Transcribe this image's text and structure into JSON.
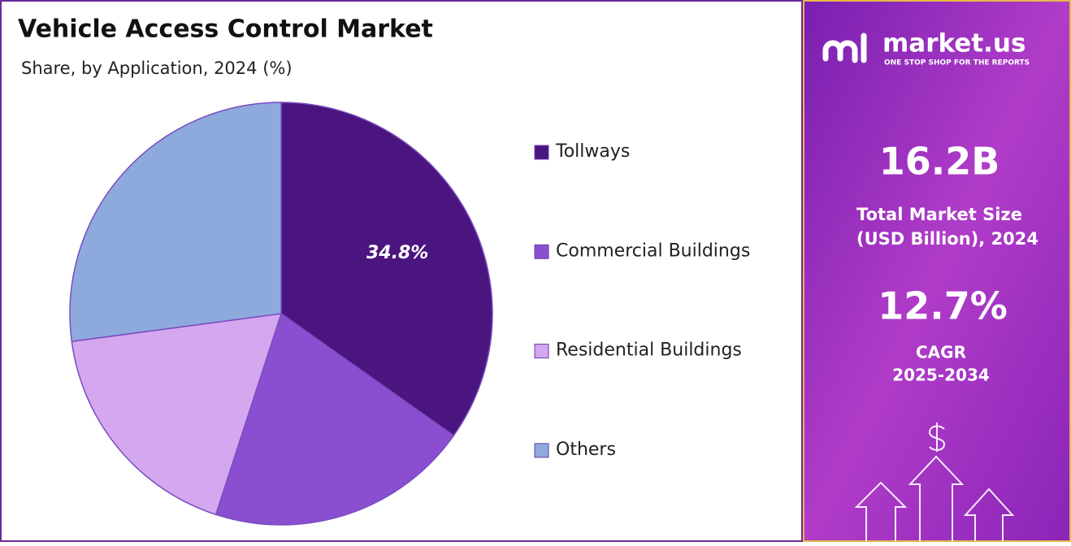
{
  "chart_data": {
    "type": "pie",
    "title": "Vehicle Access Control Market",
    "subtitle": "Share, by Application, 2024 (%)",
    "categories": [
      "Tollways",
      "Commercial Buildings",
      "Residential Buildings",
      "Others"
    ],
    "values": [
      34.8,
      20.2,
      17.9,
      27.1
    ],
    "value_labels": [
      "34.8%",
      null,
      null,
      null
    ],
    "colors": [
      "#4b1580",
      "#8a4fd0",
      "#d4a8ee",
      "#8eaadd"
    ],
    "legend": "right"
  },
  "side_panel": {
    "brand": "market.us",
    "tagline": "ONE STOP SHOP FOR THE REPORTS",
    "market_size": "16.2B",
    "market_size_label_1": "Total Market Size",
    "market_size_label_2": "(USD Billion), 2024",
    "cagr": "12.7%",
    "cagr_label": "CAGR",
    "cagr_period": "2025-2034"
  }
}
